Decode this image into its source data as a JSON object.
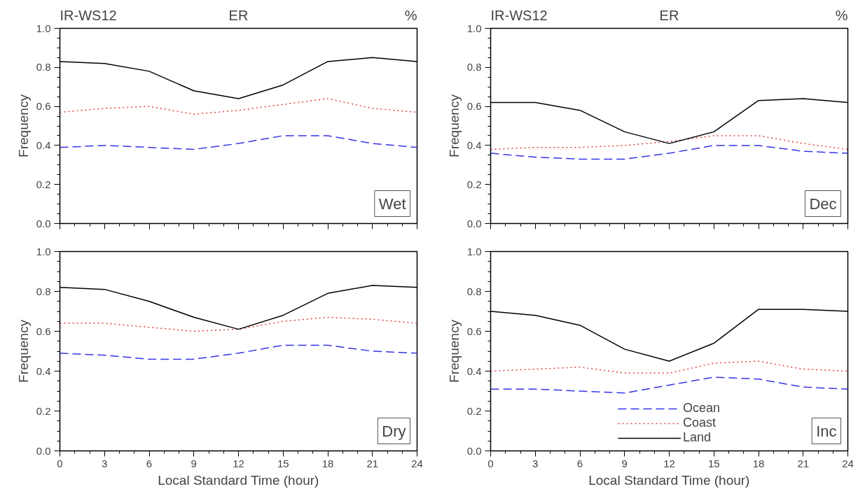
{
  "chart_data": [
    {
      "type": "line",
      "title": "ER",
      "annotations": [
        "IR-WS12",
        "%",
        "Wet"
      ],
      "ylabel": "Frequency",
      "x": [
        0,
        3,
        6,
        9,
        12,
        15,
        18,
        21,
        24
      ],
      "xlim": [
        0,
        24
      ],
      "ylim": [
        0,
        1
      ],
      "xticks": [
        0,
        3,
        6,
        9,
        12,
        15,
        18,
        21,
        24
      ],
      "yticks": [
        {
          "value": 0,
          "label": "0.0"
        },
        {
          "value": 0.2,
          "label": "0.2"
        },
        {
          "value": 0.4,
          "label": "0.4"
        },
        {
          "value": 0.6,
          "label": "0.6"
        },
        {
          "value": 0.8,
          "label": "0.8"
        },
        {
          "value": 1,
          "label": "1.0"
        }
      ],
      "tick_labels": "y",
      "grid": false,
      "legend": false,
      "series": [
        {
          "color": "#3535e8",
          "line_style": "dashed",
          "values": [
            0.39,
            0.4,
            0.39,
            0.38,
            0.41,
            0.45,
            0.45,
            0.41,
            0.39
          ]
        },
        {
          "color": "#e04040",
          "line_style": "dotted",
          "values": [
            0.57,
            0.59,
            0.6,
            0.56,
            0.58,
            0.61,
            0.64,
            0.59,
            0.57
          ]
        },
        {
          "color": "#000000",
          "line_style": "solid",
          "values": [
            0.83,
            0.82,
            0.78,
            0.68,
            0.64,
            0.71,
            0.83,
            0.85,
            0.83
          ]
        }
      ]
    },
    {
      "type": "line",
      "title": "ER",
      "annotations": [
        "IR-WS12",
        "%",
        "Dec"
      ],
      "ylabel": "Frequency",
      "x": [
        0,
        3,
        6,
        9,
        12,
        15,
        18,
        21,
        24
      ],
      "xlim": [
        0,
        24
      ],
      "ylim": [
        0,
        1
      ],
      "xticks": [
        0,
        3,
        6,
        9,
        12,
        15,
        18,
        21,
        24
      ],
      "yticks": [
        {
          "value": 0,
          "label": "0.0"
        },
        {
          "value": 0.2,
          "label": "0.2"
        },
        {
          "value": 0.4,
          "label": "0.4"
        },
        {
          "value": 0.6,
          "label": "0.6"
        },
        {
          "value": 0.8,
          "label": "0.8"
        },
        {
          "value": 1,
          "label": "1.0"
        }
      ],
      "tick_labels": "y",
      "grid": false,
      "legend": false,
      "series": [
        {
          "color": "#3535e8",
          "line_style": "dashed",
          "values": [
            0.36,
            0.34,
            0.33,
            0.33,
            0.36,
            0.4,
            0.4,
            0.37,
            0.36
          ]
        },
        {
          "color": "#e04040",
          "line_style": "dotted",
          "values": [
            0.38,
            0.39,
            0.39,
            0.4,
            0.42,
            0.45,
            0.45,
            0.41,
            0.38
          ]
        },
        {
          "color": "#000000",
          "line_style": "solid",
          "values": [
            0.62,
            0.62,
            0.58,
            0.47,
            0.41,
            0.47,
            0.63,
            0.64,
            0.62
          ]
        }
      ]
    },
    {
      "type": "line",
      "annotations": [
        "Dry"
      ],
      "ylabel": "Frequency",
      "xlabel": "Local Standard Time (hour)",
      "x": [
        0,
        3,
        6,
        9,
        12,
        15,
        18,
        21,
        24
      ],
      "xlim": [
        0,
        24
      ],
      "ylim": [
        0,
        1
      ],
      "xticks": [
        0,
        3,
        6,
        9,
        12,
        15,
        18,
        21,
        24
      ],
      "yticks": [
        {
          "value": 0,
          "label": "0.0"
        },
        {
          "value": 0.2,
          "label": "0.2"
        },
        {
          "value": 0.4,
          "label": "0.4"
        },
        {
          "value": 0.6,
          "label": "0.6"
        },
        {
          "value": 0.8,
          "label": "0.8"
        },
        {
          "value": 1,
          "label": "1.0"
        }
      ],
      "grid": false,
      "legend": false,
      "series": [
        {
          "color": "#3535e8",
          "line_style": "dashed",
          "values": [
            0.49,
            0.48,
            0.46,
            0.46,
            0.49,
            0.53,
            0.53,
            0.5,
            0.49
          ]
        },
        {
          "color": "#e04040",
          "line_style": "dotted",
          "values": [
            0.64,
            0.64,
            0.62,
            0.6,
            0.61,
            0.65,
            0.67,
            0.66,
            0.64
          ]
        },
        {
          "color": "#000000",
          "line_style": "solid",
          "values": [
            0.82,
            0.81,
            0.75,
            0.67,
            0.61,
            0.68,
            0.79,
            0.83,
            0.82
          ]
        }
      ]
    },
    {
      "type": "line",
      "annotations": [
        "Inc"
      ],
      "ylabel": "Frequency",
      "xlabel": "Local Standard Time (hour)",
      "x": [
        0,
        3,
        6,
        9,
        12,
        15,
        18,
        21,
        24
      ],
      "xlim": [
        0,
        24
      ],
      "ylim": [
        0,
        1
      ],
      "xticks": [
        0,
        3,
        6,
        9,
        12,
        15,
        18,
        21,
        24
      ],
      "yticks": [
        {
          "value": 0,
          "label": "0.0"
        },
        {
          "value": 0.2,
          "label": "0.2"
        },
        {
          "value": 0.4,
          "label": "0.4"
        },
        {
          "value": 0.6,
          "label": "0.6"
        },
        {
          "value": 0.8,
          "label": "0.8"
        },
        {
          "value": 1,
          "label": "1.0"
        }
      ],
      "grid": false,
      "legend": "bottom",
      "series": [
        {
          "name": "Ocean",
          "color": "#3535e8",
          "line_style": "dashed",
          "values": [
            0.31,
            0.31,
            0.3,
            0.29,
            0.33,
            0.37,
            0.36,
            0.32,
            0.31
          ]
        },
        {
          "name": "Coast",
          "color": "#e04040",
          "line_style": "dotted",
          "values": [
            0.4,
            0.41,
            0.42,
            0.39,
            0.39,
            0.44,
            0.45,
            0.41,
            0.4
          ]
        },
        {
          "name": "Land",
          "color": "#000000",
          "line_style": "solid",
          "values": [
            0.7,
            0.68,
            0.63,
            0.51,
            0.45,
            0.54,
            0.71,
            0.71,
            0.7
          ]
        }
      ]
    }
  ]
}
